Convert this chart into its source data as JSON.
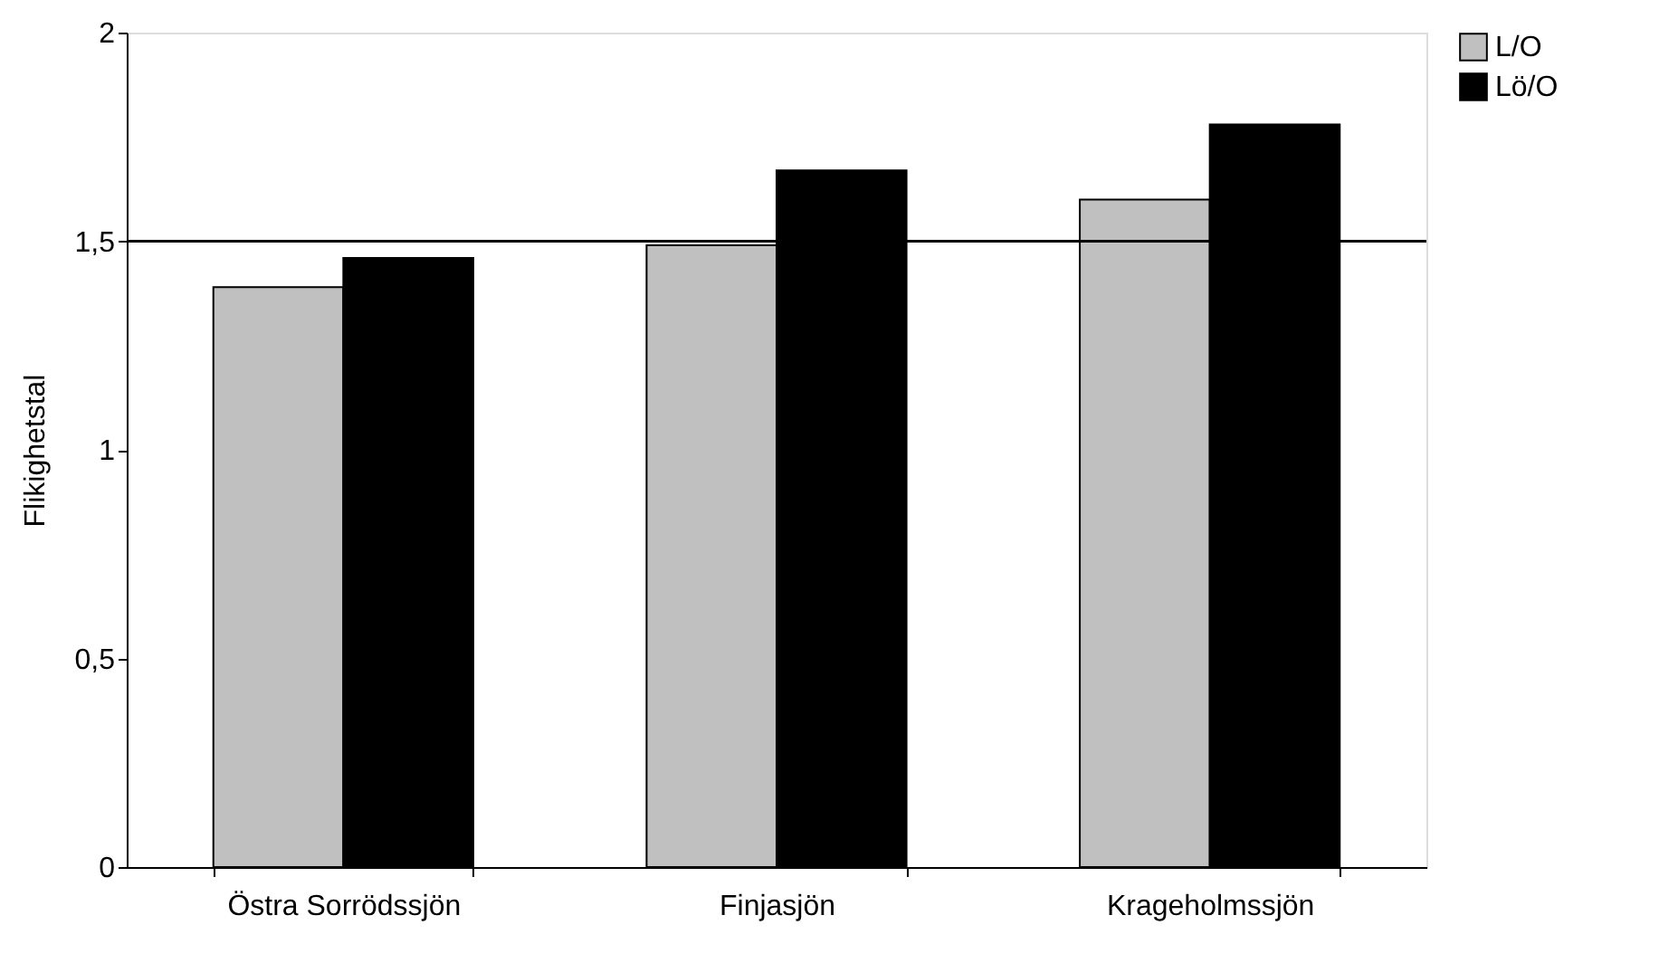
{
  "chart_data": {
    "type": "bar",
    "ylabel": "Flikighetstal",
    "categories": [
      "Östra Sorrödssjön",
      "Finjasjön",
      "Krageholmssjön"
    ],
    "series": [
      {
        "name": "L/O",
        "color": "#c0c0c0",
        "values": [
          1.39,
          1.49,
          1.6
        ]
      },
      {
        "name": "Lö/O",
        "color": "#000000",
        "values": [
          1.46,
          1.67,
          1.78
        ]
      }
    ],
    "ylim": [
      0,
      2
    ],
    "yticks": [
      0,
      {
        "value": 0.5,
        "label": "0,5"
      },
      1,
      {
        "value": 1.5,
        "label": "1,5"
      },
      2
    ],
    "ref_lines": [
      {
        "axis": "y",
        "value": 1.5,
        "color": "#000000",
        "line_style": "solid"
      }
    ],
    "grid": false,
    "legend": "right"
  }
}
